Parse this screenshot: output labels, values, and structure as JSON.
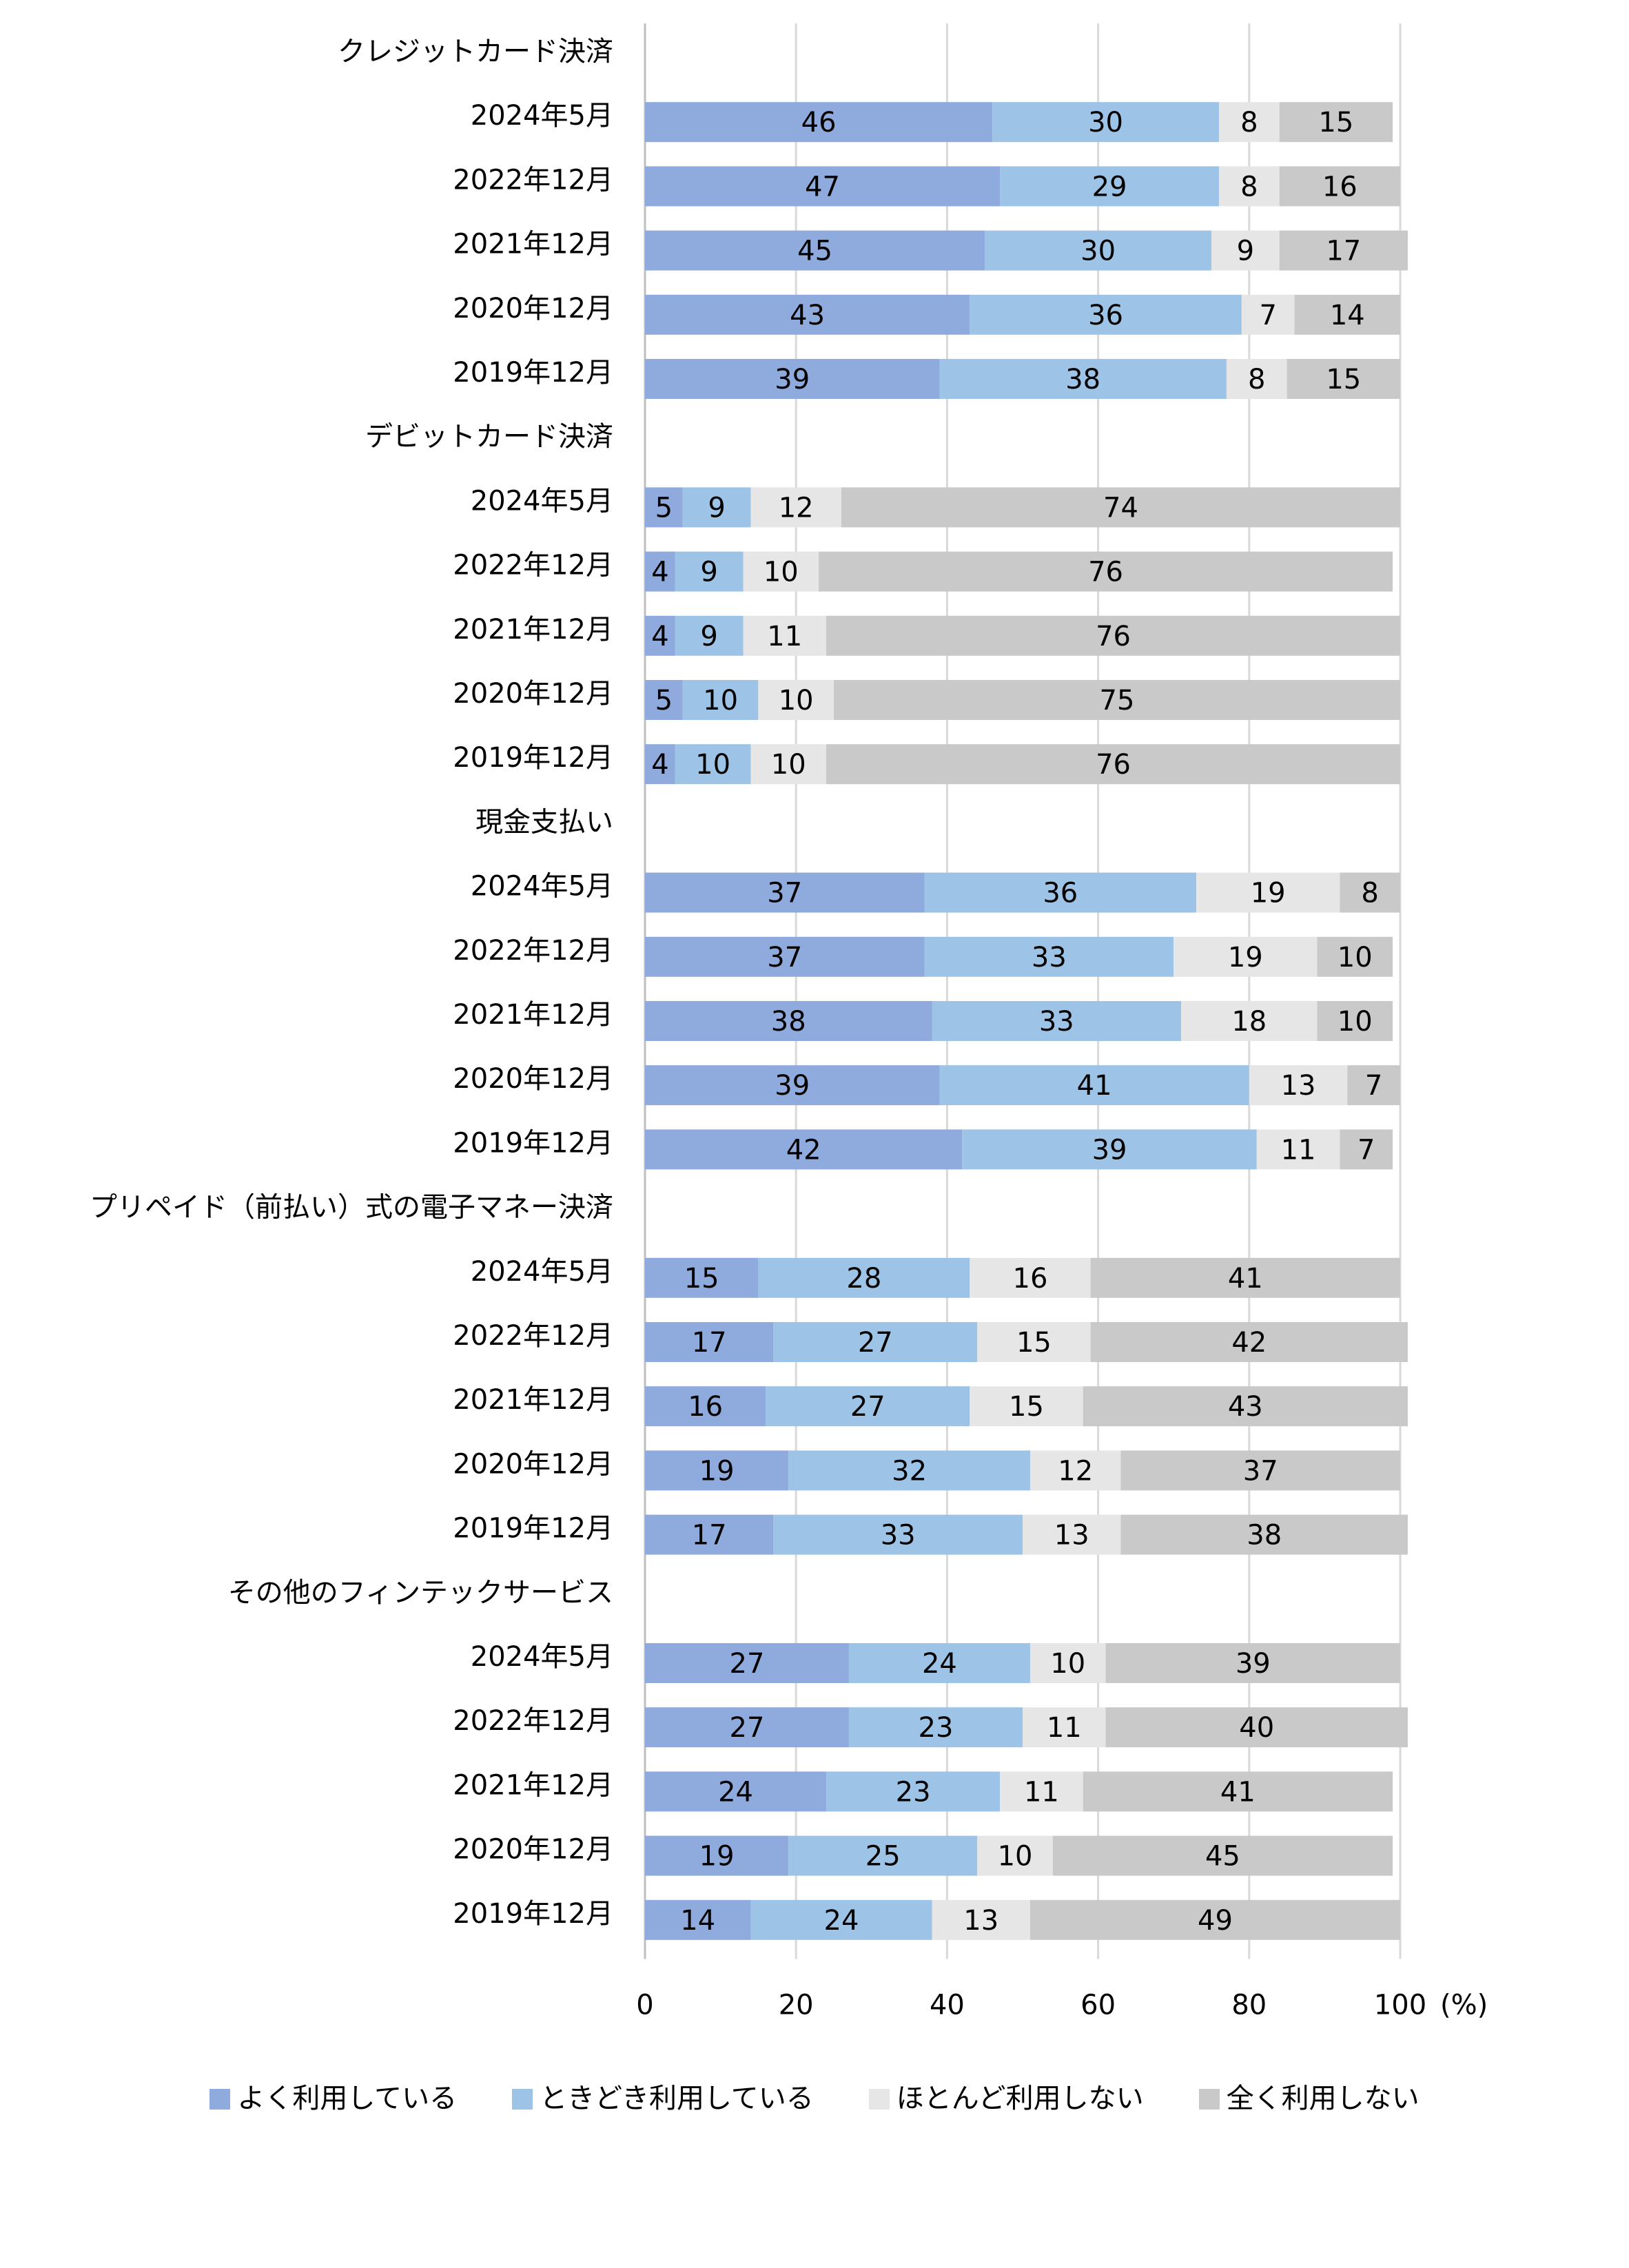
{
  "chart_data": {
    "type": "bar",
    "orientation": "horizontal",
    "stacked": true,
    "title": "",
    "xlabel": "",
    "unit_label": "(%)",
    "xlim": [
      0,
      100
    ],
    "xticks": [
      "0",
      "20",
      "40",
      "60",
      "80",
      "100"
    ],
    "grid": true,
    "legend_position": "bottom",
    "series_names": [
      "よく利用している",
      "ときどき利用している",
      "ほとんど利用しない",
      "全く利用しない"
    ],
    "colors": [
      "#8faadc",
      "#9dc3e6",
      "#e7e6e6",
      "#c9c9c9"
    ],
    "groups": [
      {
        "name": "クレジットカード決済",
        "rows": [
          {
            "label": "2024年5月",
            "values": [
              46,
              30,
              8,
              15
            ]
          },
          {
            "label": "2022年12月",
            "values": [
              47,
              29,
              8,
              16
            ]
          },
          {
            "label": "2021年12月",
            "values": [
              45,
              30,
              9,
              17
            ]
          },
          {
            "label": "2020年12月",
            "values": [
              43,
              36,
              7,
              14
            ]
          },
          {
            "label": "2019年12月",
            "values": [
              39,
              38,
              8,
              15
            ]
          }
        ]
      },
      {
        "name": "デビットカード決済",
        "rows": [
          {
            "label": "2024年5月",
            "values": [
              5,
              9,
              12,
              74
            ]
          },
          {
            "label": "2022年12月",
            "values": [
              4,
              9,
              10,
              76
            ]
          },
          {
            "label": "2021年12月",
            "values": [
              4,
              9,
              11,
              76
            ]
          },
          {
            "label": "2020年12月",
            "values": [
              5,
              10,
              10,
              75
            ]
          },
          {
            "label": "2019年12月",
            "values": [
              4,
              10,
              10,
              76
            ]
          }
        ]
      },
      {
        "name": "現金支払い",
        "rows": [
          {
            "label": "2024年5月",
            "values": [
              37,
              36,
              19,
              8
            ]
          },
          {
            "label": "2022年12月",
            "values": [
              37,
              33,
              19,
              10
            ]
          },
          {
            "label": "2021年12月",
            "values": [
              38,
              33,
              18,
              10
            ]
          },
          {
            "label": "2020年12月",
            "values": [
              39,
              41,
              13,
              7
            ]
          },
          {
            "label": "2019年12月",
            "values": [
              42,
              39,
              11,
              7
            ]
          }
        ]
      },
      {
        "name": "プリペイド（前払い）式の電子マネー決済",
        "rows": [
          {
            "label": "2024年5月",
            "values": [
              15,
              28,
              16,
              41
            ]
          },
          {
            "label": "2022年12月",
            "values": [
              17,
              27,
              15,
              42
            ]
          },
          {
            "label": "2021年12月",
            "values": [
              16,
              27,
              15,
              43
            ]
          },
          {
            "label": "2020年12月",
            "values": [
              19,
              32,
              12,
              37
            ]
          },
          {
            "label": "2019年12月",
            "values": [
              17,
              33,
              13,
              38
            ]
          }
        ]
      },
      {
        "name": "その他のフィンテックサービス",
        "rows": [
          {
            "label": "2024年5月",
            "values": [
              27,
              24,
              10,
              39
            ]
          },
          {
            "label": "2022年12月",
            "values": [
              27,
              23,
              11,
              40
            ]
          },
          {
            "label": "2021年12月",
            "values": [
              24,
              23,
              11,
              41
            ]
          },
          {
            "label": "2020年12月",
            "values": [
              19,
              25,
              10,
              45
            ]
          },
          {
            "label": "2019年12月",
            "values": [
              14,
              24,
              13,
              49
            ]
          }
        ]
      }
    ]
  }
}
